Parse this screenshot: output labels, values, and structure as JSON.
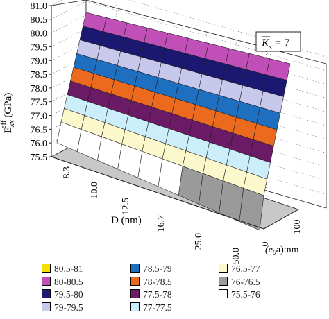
{
  "chart_data": {
    "type": "surface3d",
    "z_axis": {
      "label_main": "E",
      "label_sup": "eff",
      "label_sub": "xx",
      "label_unit": " (GPa)",
      "ticks": [
        "75.5",
        "76.0",
        "76.5",
        "77.0",
        "77.5",
        "78.0",
        "78.5",
        "79.0",
        "79.5",
        "80.0",
        "80.5",
        "81.0"
      ],
      "range": [
        75.5,
        81.0
      ]
    },
    "d_axis": {
      "label": "D (nm)",
      "ticks": [
        "8.3",
        "10.0",
        "12.5",
        "16.7",
        "25.0",
        "50.0"
      ]
    },
    "e_axis": {
      "label_pre": "(e",
      "label_sub": "0",
      "label_post": "a):nm",
      "ticks": [
        "0",
        "100"
      ]
    },
    "annotation": {
      "k_symbol": "K",
      "k_sub": "s",
      "k_rest": " = 7"
    },
    "legend": [
      {
        "label": "80.5-81",
        "color": "#f5e000"
      },
      {
        "label": "80-80.5",
        "color": "#c050b8"
      },
      {
        "label": "79.5-80",
        "color": "#1a1870"
      },
      {
        "label": "79-79.5",
        "color": "#c8c8ec"
      },
      {
        "label": "78.5-79",
        "color": "#1e6fc0"
      },
      {
        "label": "78-78.5",
        "color": "#ec6a1e"
      },
      {
        "label": "77.5-78",
        "color": "#6b1a66"
      },
      {
        "label": "77-77.5",
        "color": "#cceefa"
      },
      {
        "label": "76.5-77",
        "color": "#fbf8cc"
      },
      {
        "label": "76-76.5",
        "color": "#9a9a9a"
      },
      {
        "label": "75.5-76",
        "color": "#ffffff"
      }
    ]
  }
}
